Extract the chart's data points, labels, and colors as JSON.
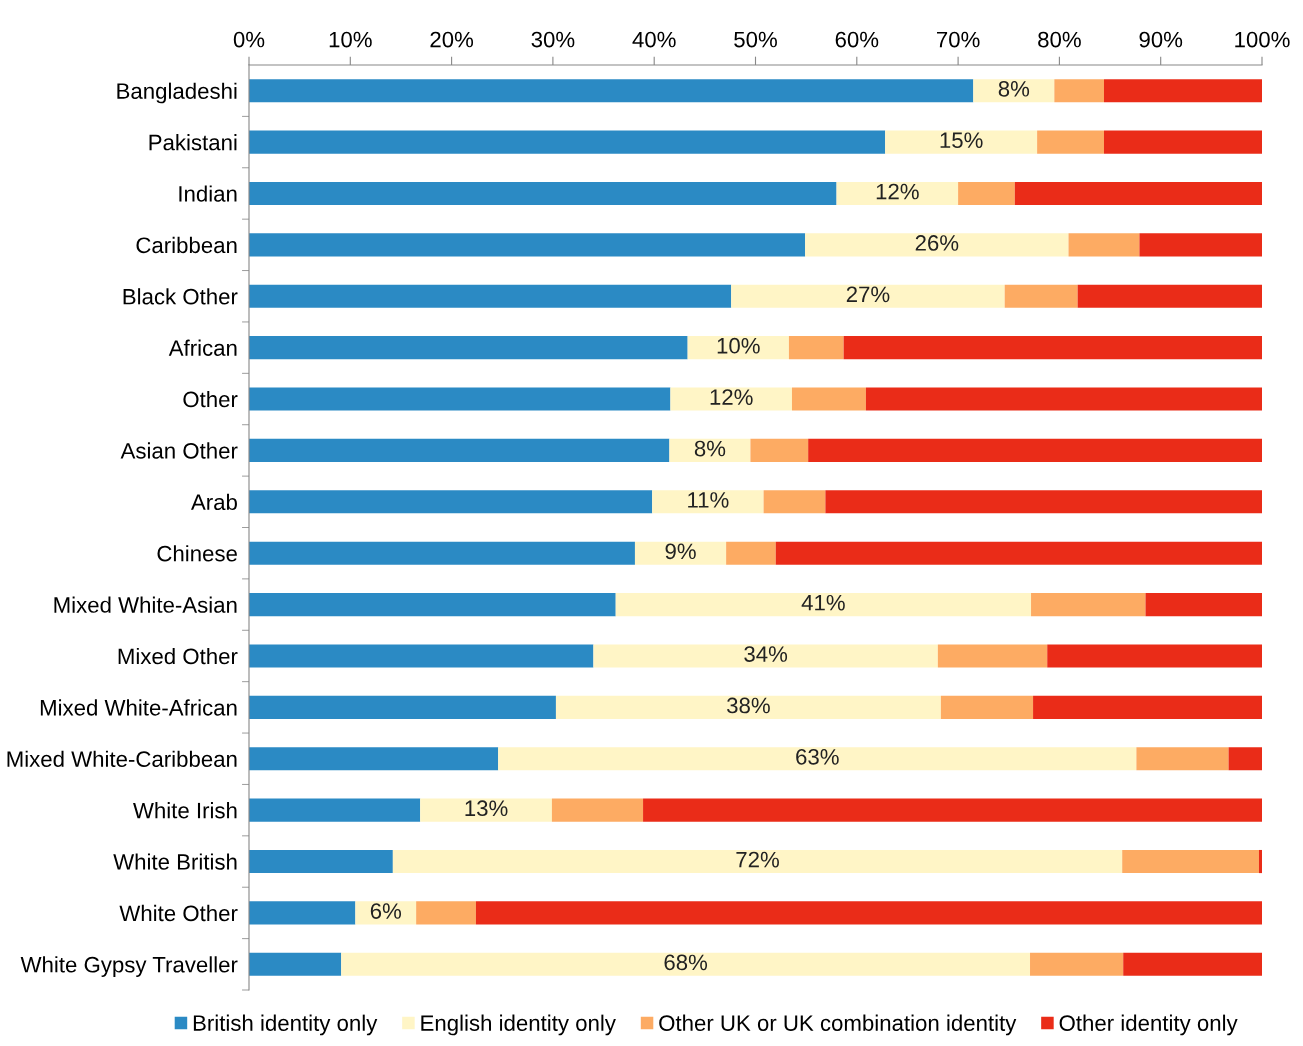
{
  "chart_data": {
    "type": "bar",
    "orientation": "horizontal",
    "stacked": true,
    "categories": [
      "Bangladeshi",
      "Pakistani",
      "Indian",
      "Caribbean",
      "Black Other",
      "African",
      "Other",
      "Asian Other",
      "Arab",
      "Chinese",
      "Mixed White-Asian",
      "Mixed Other",
      "Mixed White-African",
      "Mixed White-Caribbean",
      "White Irish",
      "White British",
      "White Other",
      "White Gypsy Traveller"
    ],
    "series": [
      {
        "name": "British identity only",
        "color": "#2b8ac4",
        "values": [
          71.5,
          62.8,
          58.0,
          54.9,
          47.6,
          43.3,
          41.6,
          41.5,
          39.8,
          38.1,
          36.2,
          34.0,
          30.3,
          24.6,
          16.9,
          14.2,
          10.5,
          9.1
        ]
      },
      {
        "name": "English identity only",
        "color": "#fff5c6",
        "values": [
          8,
          15,
          12,
          26,
          27,
          10,
          12,
          8,
          11,
          9,
          41,
          34,
          38,
          63,
          13,
          72,
          6,
          68
        ],
        "value_labels": [
          "8%",
          "15%",
          "12%",
          "26%",
          "27%",
          "10%",
          "12%",
          "8%",
          "11%",
          "9%",
          "41%",
          "34%",
          "38%",
          "63%",
          "13%",
          "72%",
          "6%",
          "68%"
        ]
      },
      {
        "name": "Other UK or UK combination identity",
        "color": "#fdab63",
        "values": [
          4.9,
          6.6,
          5.6,
          7.0,
          7.2,
          5.4,
          7.3,
          5.7,
          6.1,
          4.9,
          11.3,
          10.8,
          9.1,
          9.1,
          9.0,
          13.5,
          5.9,
          9.2
        ]
      },
      {
        "name": "Other identity only",
        "color": "#ea2c18",
        "values": [
          15.6,
          15.6,
          24.4,
          12.1,
          18.2,
          41.3,
          39.1,
          44.8,
          43.1,
          48.0,
          11.5,
          21.2,
          22.6,
          3.3,
          61.1,
          0.3,
          77.6,
          13.7
        ]
      }
    ],
    "xlim": [
      0,
      100
    ],
    "xticks": [
      {
        "value": 0,
        "label": "0%"
      },
      {
        "value": 10,
        "label": "10%"
      },
      {
        "value": 20,
        "label": "20%"
      },
      {
        "value": 30,
        "label": "30%"
      },
      {
        "value": 40,
        "label": "40%"
      },
      {
        "value": 50,
        "label": "50%"
      },
      {
        "value": 60,
        "label": "60%"
      },
      {
        "value": 70,
        "label": "70%"
      },
      {
        "value": 80,
        "label": "80%"
      },
      {
        "value": 90,
        "label": "90%"
      },
      {
        "value": 100,
        "label": "100%"
      }
    ],
    "legend": "bottom",
    "marker": "square",
    "grid": false
  }
}
